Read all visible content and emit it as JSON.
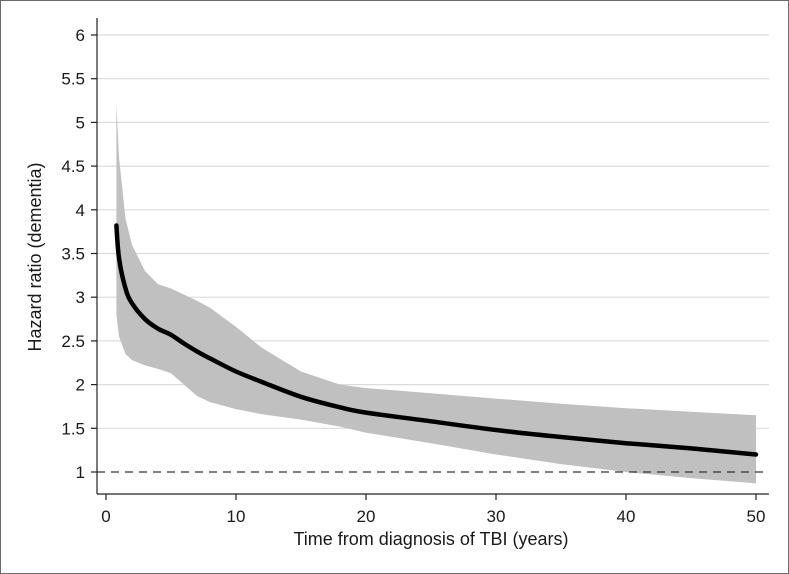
{
  "chart_data": {
    "type": "line",
    "xlabel": "Time from diagnosis of TBI (years)",
    "ylabel": "Hazard ratio (dementia)",
    "xlim": [
      0,
      50
    ],
    "ylim": [
      0.75,
      6.2
    ],
    "x_ticks": [
      0,
      10,
      20,
      30,
      40,
      50
    ],
    "x_tick_labels": [
      "0",
      "10",
      "20",
      "30",
      "40",
      "50"
    ],
    "y_ticks": [
      1,
      1.5,
      2,
      2.5,
      3,
      3.5,
      4,
      4.5,
      5,
      5.5,
      6
    ],
    "y_tick_labels": [
      "1",
      "1.5",
      "2",
      "2.5",
      "3",
      "3.5",
      "4",
      "4.5",
      "5",
      "5.5",
      "6"
    ],
    "grid": true,
    "reference_line": {
      "y": 1,
      "style": "dashed"
    },
    "series": [
      {
        "kind": "estimate",
        "color": "#000000",
        "x": [
          0.8,
          1,
          1.5,
          2,
          3,
          4,
          5,
          6,
          7,
          8,
          10,
          12,
          15,
          18,
          20,
          25,
          30,
          35,
          40,
          45,
          50
        ],
        "y": [
          3.82,
          3.45,
          3.1,
          2.93,
          2.75,
          2.64,
          2.57,
          2.47,
          2.38,
          2.3,
          2.15,
          2.03,
          1.86,
          1.74,
          1.68,
          1.58,
          1.48,
          1.4,
          1.33,
          1.27,
          1.2
        ]
      },
      {
        "kind": "ci_upper",
        "color": "#c0c0c0",
        "x": [
          0.8,
          1,
          1.5,
          2,
          3,
          4,
          5,
          6,
          7,
          8,
          10,
          12,
          15,
          18,
          20,
          25,
          30,
          35,
          40,
          45,
          50
        ],
        "y": [
          5.22,
          4.6,
          3.9,
          3.6,
          3.3,
          3.15,
          3.1,
          3.03,
          2.96,
          2.88,
          2.66,
          2.42,
          2.15,
          2.0,
          1.96,
          1.9,
          1.84,
          1.78,
          1.73,
          1.69,
          1.65
        ]
      },
      {
        "kind": "ci_lower",
        "color": "#c0c0c0",
        "x": [
          0.8,
          1,
          1.5,
          2,
          3,
          4,
          5,
          6,
          7,
          8,
          10,
          12,
          15,
          18,
          20,
          25,
          30,
          35,
          40,
          45,
          50
        ],
        "y": [
          2.8,
          2.55,
          2.35,
          2.28,
          2.22,
          2.18,
          2.13,
          2.0,
          1.87,
          1.8,
          1.72,
          1.66,
          1.6,
          1.52,
          1.45,
          1.33,
          1.2,
          1.09,
          1.0,
          0.93,
          0.87
        ]
      }
    ]
  }
}
